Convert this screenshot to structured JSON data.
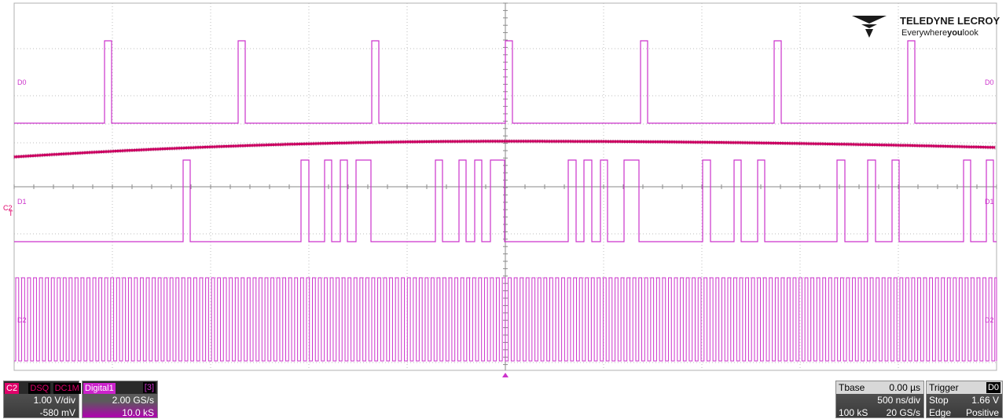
{
  "logo": {
    "brand": "TELEDYNE LECROY",
    "tagline_pre": "Everywhere",
    "tagline_bold": "you",
    "tagline_post": "look"
  },
  "trigger_level_label": "T",
  "channels": {
    "d0": {
      "label": "D0",
      "color": "#cc33cc"
    },
    "d1": {
      "label": "D1",
      "color": "#cc33cc"
    },
    "d2": {
      "label": "D2",
      "color": "#cc33cc"
    },
    "c2": {
      "label": "C2",
      "color": "#e0006a"
    }
  },
  "c2_box": {
    "name": "C2",
    "tag1": "DSQ",
    "tag2": "DC1M",
    "vdiv": "1.00 V/div",
    "offset": "-580 mV"
  },
  "digital_box": {
    "name": "Digital1",
    "tag": "[3]",
    "rate": "2.00 GS/s",
    "samples": "10.0 kS"
  },
  "tbase_box": {
    "title": "Tbase",
    "delay": "0.00 µs",
    "tdiv": "500 ns/div",
    "samples": "100 kS",
    "rate": "20 GS/s"
  },
  "trigger_box": {
    "title": "Trigger",
    "source": "D0",
    "mode": "Stop",
    "level": "1.66 V",
    "type": "Edge",
    "slope": "Positive"
  }
}
